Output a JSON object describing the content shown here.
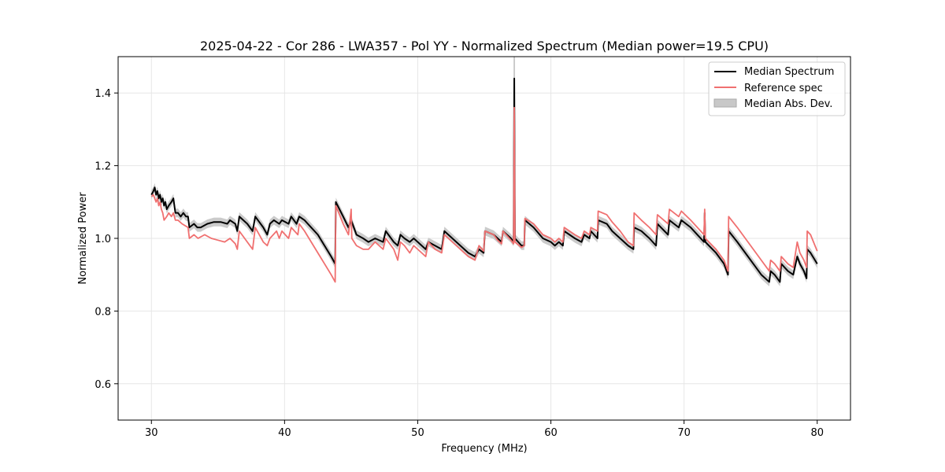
{
  "chart_data": {
    "type": "line",
    "title": "2025-04-22 - Cor 286 - LWA357 - Pol YY - Normalized Spectrum (Median power=19.5 CPU)",
    "xlabel": "Frequency (MHz)",
    "ylabel": "Normalized Power",
    "xlim": [
      27.5,
      82.5
    ],
    "ylim": [
      0.5,
      1.5
    ],
    "xticks": [
      30,
      40,
      50,
      60,
      70,
      80
    ],
    "xtick_labels": [
      "30",
      "40",
      "50",
      "60",
      "70",
      "80"
    ],
    "yticks": [
      0.6,
      0.8,
      1.0,
      1.2,
      1.4
    ],
    "ytick_labels": [
      "0.6",
      "0.8",
      "1.0",
      "1.2",
      "1.4"
    ],
    "grid": true,
    "legend_position": "top-right",
    "colors": {
      "median": "#000000",
      "reference": "#f07070",
      "mad": "#c8c8c8"
    },
    "mad_halfwidth": 0.012,
    "series": [
      {
        "name": "Median Spectrum",
        "points": [
          [
            30.0,
            1.12
          ],
          [
            30.15,
            1.13
          ],
          [
            30.25,
            1.14
          ],
          [
            30.35,
            1.12
          ],
          [
            30.45,
            1.13
          ],
          [
            30.55,
            1.11
          ],
          [
            30.65,
            1.12
          ],
          [
            30.75,
            1.1
          ],
          [
            30.85,
            1.11
          ],
          [
            30.95,
            1.09
          ],
          [
            31.05,
            1.1
          ],
          [
            31.15,
            1.08
          ],
          [
            31.3,
            1.09
          ],
          [
            31.5,
            1.1
          ],
          [
            31.65,
            1.11
          ],
          [
            31.8,
            1.07
          ],
          [
            32.0,
            1.07
          ],
          [
            32.2,
            1.06
          ],
          [
            32.4,
            1.07
          ],
          [
            32.6,
            1.06
          ],
          [
            32.75,
            1.06
          ],
          [
            32.85,
            1.03
          ],
          [
            33.2,
            1.04
          ],
          [
            33.45,
            1.03
          ],
          [
            33.7,
            1.03
          ],
          [
            34.2,
            1.04
          ],
          [
            34.7,
            1.045
          ],
          [
            35.2,
            1.045
          ],
          [
            35.7,
            1.04
          ],
          [
            35.9,
            1.05
          ],
          [
            36.3,
            1.04
          ],
          [
            36.45,
            1.02
          ],
          [
            36.6,
            1.06
          ],
          [
            37.2,
            1.04
          ],
          [
            37.6,
            1.02
          ],
          [
            37.8,
            1.06
          ],
          [
            38.4,
            1.03
          ],
          [
            38.7,
            1.01
          ],
          [
            38.9,
            1.04
          ],
          [
            39.2,
            1.05
          ],
          [
            39.6,
            1.04
          ],
          [
            39.8,
            1.05
          ],
          [
            40.3,
            1.04
          ],
          [
            40.5,
            1.06
          ],
          [
            40.9,
            1.04
          ],
          [
            41.1,
            1.06
          ],
          [
            41.5,
            1.05
          ],
          [
            42.0,
            1.03
          ],
          [
            42.5,
            1.01
          ],
          [
            43.0,
            0.98
          ],
          [
            43.5,
            0.95
          ],
          [
            43.8,
            0.93
          ],
          [
            43.85,
            1.1
          ],
          [
            44.4,
            1.06
          ],
          [
            44.8,
            1.03
          ],
          [
            45.0,
            1.05
          ],
          [
            45.4,
            1.01
          ],
          [
            45.9,
            1.0
          ],
          [
            46.3,
            0.99
          ],
          [
            46.8,
            1.0
          ],
          [
            47.4,
            0.99
          ],
          [
            47.6,
            1.02
          ],
          [
            48.2,
            0.99
          ],
          [
            48.5,
            0.98
          ],
          [
            48.7,
            1.01
          ],
          [
            49.0,
            1.0
          ],
          [
            49.4,
            0.99
          ],
          [
            49.7,
            1.0
          ],
          [
            50.3,
            0.98
          ],
          [
            50.6,
            0.97
          ],
          [
            50.8,
            0.99
          ],
          [
            51.3,
            0.98
          ],
          [
            51.8,
            0.97
          ],
          [
            52.0,
            1.02
          ],
          [
            52.6,
            1.0
          ],
          [
            53.2,
            0.98
          ],
          [
            53.8,
            0.96
          ],
          [
            54.3,
            0.95
          ],
          [
            54.6,
            0.97
          ],
          [
            54.95,
            0.96
          ],
          [
            55.05,
            1.02
          ],
          [
            55.7,
            1.01
          ],
          [
            56.0,
            1.0
          ],
          [
            56.3,
            0.99
          ],
          [
            56.4,
            1.02
          ],
          [
            57.0,
            1.0
          ],
          [
            57.2,
            0.99
          ],
          [
            57.25,
            1.44
          ],
          [
            57.3,
            1.0
          ],
          [
            57.8,
            0.98
          ],
          [
            58.0,
            0.98
          ],
          [
            58.05,
            1.05
          ],
          [
            58.7,
            1.03
          ],
          [
            59.4,
            1.0
          ],
          [
            60.0,
            0.99
          ],
          [
            60.3,
            0.98
          ],
          [
            60.6,
            0.99
          ],
          [
            60.9,
            0.98
          ],
          [
            61.0,
            1.02
          ],
          [
            61.8,
            1.0
          ],
          [
            62.3,
            0.99
          ],
          [
            62.5,
            1.01
          ],
          [
            62.9,
            1.0
          ],
          [
            63.0,
            1.02
          ],
          [
            63.5,
            1.0
          ],
          [
            63.55,
            1.05
          ],
          [
            64.2,
            1.04
          ],
          [
            64.6,
            1.02
          ],
          [
            65.2,
            1.0
          ],
          [
            65.8,
            0.98
          ],
          [
            66.2,
            0.97
          ],
          [
            66.25,
            1.03
          ],
          [
            66.8,
            1.02
          ],
          [
            67.4,
            1.0
          ],
          [
            67.9,
            0.98
          ],
          [
            68.0,
            1.04
          ],
          [
            68.8,
            1.01
          ],
          [
            68.9,
            1.05
          ],
          [
            69.6,
            1.03
          ],
          [
            69.8,
            1.05
          ],
          [
            70.5,
            1.03
          ],
          [
            71.5,
            0.99
          ],
          [
            71.55,
            1.07
          ],
          [
            71.6,
            0.99
          ],
          [
            72.4,
            0.96
          ],
          [
            73.0,
            0.93
          ],
          [
            73.3,
            0.9
          ],
          [
            73.35,
            1.02
          ],
          [
            74.0,
            0.99
          ],
          [
            74.6,
            0.96
          ],
          [
            75.2,
            0.93
          ],
          [
            75.8,
            0.9
          ],
          [
            76.4,
            0.88
          ],
          [
            76.5,
            0.91
          ],
          [
            76.8,
            0.9
          ],
          [
            77.2,
            0.88
          ],
          [
            77.3,
            0.93
          ],
          [
            77.8,
            0.91
          ],
          [
            78.2,
            0.9
          ],
          [
            78.5,
            0.95
          ],
          [
            78.7,
            0.93
          ],
          [
            79.0,
            0.91
          ],
          [
            79.2,
            0.89
          ],
          [
            79.25,
            0.97
          ],
          [
            79.5,
            0.96
          ],
          [
            80.0,
            0.93
          ]
        ]
      },
      {
        "name": "Reference spec",
        "points": [
          [
            30.0,
            1.115
          ],
          [
            30.15,
            1.12
          ],
          [
            30.25,
            1.11
          ],
          [
            30.35,
            1.1
          ],
          [
            30.45,
            1.11
          ],
          [
            30.55,
            1.09
          ],
          [
            30.65,
            1.1
          ],
          [
            30.75,
            1.08
          ],
          [
            30.85,
            1.07
          ],
          [
            30.95,
            1.05
          ],
          [
            31.15,
            1.06
          ],
          [
            31.3,
            1.07
          ],
          [
            31.5,
            1.06
          ],
          [
            31.65,
            1.07
          ],
          [
            31.8,
            1.05
          ],
          [
            32.0,
            1.05
          ],
          [
            32.3,
            1.04
          ],
          [
            32.75,
            1.03
          ],
          [
            32.85,
            1.0
          ],
          [
            33.2,
            1.01
          ],
          [
            33.5,
            1.0
          ],
          [
            34.0,
            1.01
          ],
          [
            34.5,
            1.0
          ],
          [
            35.0,
            0.995
          ],
          [
            35.5,
            0.99
          ],
          [
            35.9,
            1.0
          ],
          [
            36.3,
            0.985
          ],
          [
            36.45,
            0.97
          ],
          [
            36.6,
            1.02
          ],
          [
            37.2,
            0.99
          ],
          [
            37.6,
            0.97
          ],
          [
            37.8,
            1.03
          ],
          [
            38.4,
            0.99
          ],
          [
            38.7,
            0.98
          ],
          [
            38.9,
            1.0
          ],
          [
            39.4,
            1.02
          ],
          [
            39.6,
            1.0
          ],
          [
            39.8,
            1.02
          ],
          [
            40.3,
            1.0
          ],
          [
            40.5,
            1.03
          ],
          [
            41.0,
            1.01
          ],
          [
            41.1,
            1.04
          ],
          [
            41.5,
            1.02
          ],
          [
            42.0,
            0.99
          ],
          [
            42.5,
            0.96
          ],
          [
            43.0,
            0.93
          ],
          [
            43.5,
            0.9
          ],
          [
            43.8,
            0.88
          ],
          [
            43.85,
            1.09
          ],
          [
            44.4,
            1.04
          ],
          [
            44.8,
            1.01
          ],
          [
            45.0,
            1.08
          ],
          [
            45.05,
            1.0
          ],
          [
            45.4,
            0.98
          ],
          [
            45.9,
            0.97
          ],
          [
            46.3,
            0.97
          ],
          [
            46.8,
            0.99
          ],
          [
            47.4,
            0.97
          ],
          [
            47.6,
            1.0
          ],
          [
            48.2,
            0.97
          ],
          [
            48.5,
            0.94
          ],
          [
            48.7,
            0.99
          ],
          [
            49.0,
            0.98
          ],
          [
            49.4,
            0.96
          ],
          [
            49.7,
            0.98
          ],
          [
            50.3,
            0.96
          ],
          [
            50.6,
            0.95
          ],
          [
            50.8,
            0.99
          ],
          [
            51.3,
            0.97
          ],
          [
            51.8,
            0.96
          ],
          [
            52.0,
            1.01
          ],
          [
            52.6,
            0.99
          ],
          [
            53.2,
            0.97
          ],
          [
            53.8,
            0.95
          ],
          [
            54.3,
            0.94
          ],
          [
            54.6,
            0.98
          ],
          [
            54.95,
            0.965
          ],
          [
            55.05,
            1.02
          ],
          [
            55.7,
            1.01
          ],
          [
            56.0,
            0.995
          ],
          [
            56.3,
            0.985
          ],
          [
            56.4,
            1.02
          ],
          [
            57.0,
            0.995
          ],
          [
            57.2,
            0.985
          ],
          [
            57.25,
            1.36
          ],
          [
            57.3,
            0.99
          ],
          [
            57.8,
            0.975
          ],
          [
            58.0,
            0.98
          ],
          [
            58.05,
            1.055
          ],
          [
            58.7,
            1.04
          ],
          [
            59.4,
            1.01
          ],
          [
            60.0,
            1.0
          ],
          [
            60.3,
            0.99
          ],
          [
            60.6,
            1.0
          ],
          [
            60.9,
            0.99
          ],
          [
            61.0,
            1.03
          ],
          [
            61.8,
            1.01
          ],
          [
            62.3,
            1.0
          ],
          [
            62.5,
            1.02
          ],
          [
            62.9,
            1.01
          ],
          [
            63.0,
            1.03
          ],
          [
            63.5,
            1.02
          ],
          [
            63.55,
            1.075
          ],
          [
            64.2,
            1.065
          ],
          [
            64.6,
            1.045
          ],
          [
            65.2,
            1.02
          ],
          [
            65.8,
            0.99
          ],
          [
            66.2,
            0.98
          ],
          [
            66.25,
            1.07
          ],
          [
            66.8,
            1.05
          ],
          [
            67.4,
            1.03
          ],
          [
            67.9,
            1.01
          ],
          [
            68.0,
            1.065
          ],
          [
            68.8,
            1.04
          ],
          [
            68.9,
            1.08
          ],
          [
            69.6,
            1.06
          ],
          [
            69.8,
            1.075
          ],
          [
            70.5,
            1.05
          ],
          [
            71.5,
            1.01
          ],
          [
            71.55,
            1.08
          ],
          [
            71.6,
            1.0
          ],
          [
            72.4,
            0.97
          ],
          [
            73.0,
            0.94
          ],
          [
            73.3,
            0.91
          ],
          [
            73.35,
            1.06
          ],
          [
            74.0,
            1.03
          ],
          [
            74.6,
            1.0
          ],
          [
            75.2,
            0.97
          ],
          [
            75.8,
            0.94
          ],
          [
            76.4,
            0.91
          ],
          [
            76.5,
            0.94
          ],
          [
            76.8,
            0.93
          ],
          [
            77.2,
            0.91
          ],
          [
            77.3,
            0.95
          ],
          [
            77.8,
            0.93
          ],
          [
            78.2,
            0.92
          ],
          [
            78.5,
            0.99
          ],
          [
            78.7,
            0.96
          ],
          [
            79.0,
            0.94
          ],
          [
            79.2,
            0.92
          ],
          [
            79.25,
            1.02
          ],
          [
            79.5,
            1.01
          ],
          [
            80.0,
            0.965
          ]
        ]
      }
    ],
    "legend": [
      {
        "label": "Median Spectrum",
        "kind": "line",
        "color": "#000000"
      },
      {
        "label": "Reference spec",
        "kind": "line",
        "color": "#f07070"
      },
      {
        "label": "Median Abs. Dev.",
        "kind": "band",
        "color": "#c8c8c8"
      }
    ]
  }
}
